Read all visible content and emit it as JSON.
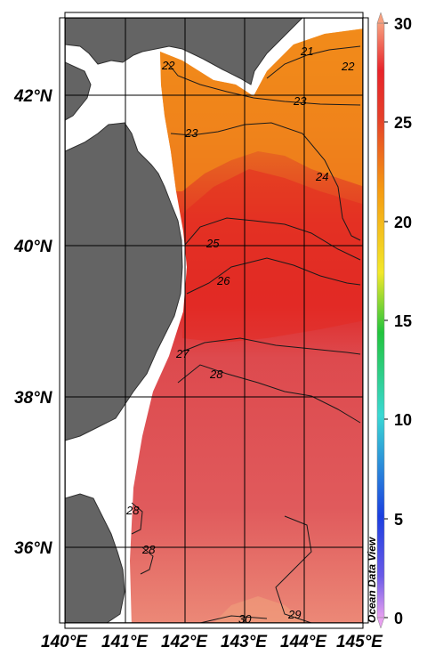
{
  "map": {
    "lat_labels": [
      "42°N",
      "40°N",
      "38°N",
      "36°N"
    ],
    "lon_labels": [
      "140°E",
      "141°E",
      "142°E",
      "143°E",
      "144°E",
      "145°E"
    ],
    "contour_labels": [
      "21",
      "22",
      "22",
      "23",
      "23",
      "24",
      "25",
      "26",
      "27",
      "28",
      "28",
      "28",
      "30",
      "29"
    ]
  },
  "colorbar": {
    "ticks": [
      "30",
      "25",
      "20",
      "15",
      "10",
      "5",
      "0"
    ],
    "colors": [
      "#f7a07f",
      "#e8242a",
      "#f59a12",
      "#f2e82a",
      "#22c43c",
      "#3ad8d4",
      "#1b3fe0",
      "#d97ee8"
    ]
  },
  "watermark": "Ocean Data View",
  "land_color": "#646464",
  "warm_color": "#dd4a4e"
}
